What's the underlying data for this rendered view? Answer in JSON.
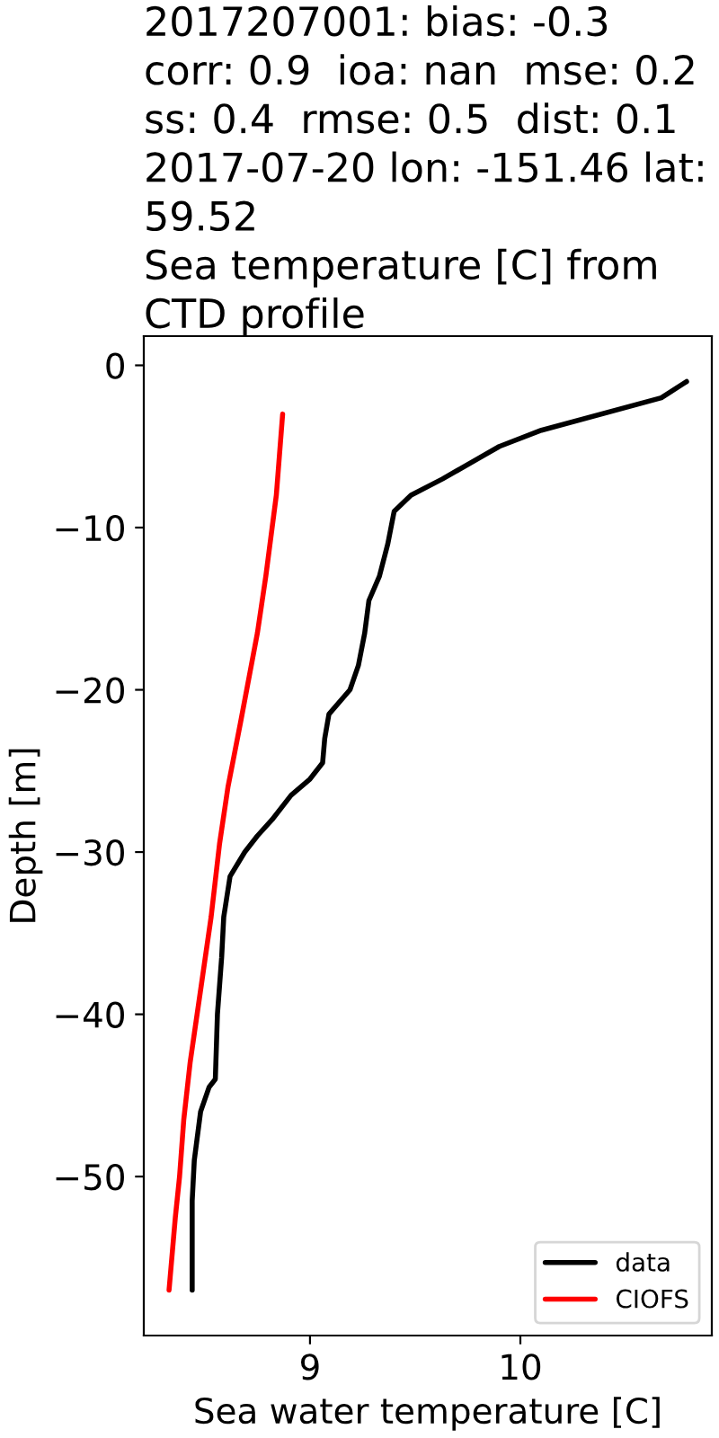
{
  "chart_data": {
    "type": "line",
    "title": "2017207001: bias: -0.3\ncorr: 0.9  ioa: nan  mse: 0.2\nss: 0.4  rmse: 0.5  dist: 0.1\n2017-07-20 lon: -151.46 lat: 59.52\nSea temperature [C] from CTD profile",
    "xlabel": "Sea water temperature [C]",
    "ylabel": "Depth [m]",
    "series": [
      {
        "name": "data",
        "color": "#000000",
        "x": [
          10.79,
          10.67,
          10.1,
          9.9,
          9.63,
          9.48,
          9.4,
          9.37,
          9.33,
          9.28,
          9.26,
          9.23,
          9.19,
          9.09,
          9.07,
          9.06,
          9.0,
          8.91,
          8.82,
          8.75,
          8.69,
          8.62,
          8.59,
          8.58,
          8.56,
          8.55,
          8.52,
          8.48,
          8.45,
          8.44,
          8.44
        ],
        "values": [
          -1,
          -2,
          -4,
          -5,
          -7,
          -8,
          -9,
          -11,
          -13,
          -14.5,
          -16.5,
          -18.5,
          -20,
          -21.5,
          -23,
          -24.5,
          -25.5,
          -26.5,
          -28,
          -29,
          -30,
          -31.5,
          -34,
          -36.5,
          -40,
          -44,
          -44.5,
          -46,
          -49,
          -51.5,
          -57
        ]
      },
      {
        "name": "CIOFS",
        "color": "#ff0000",
        "x": [
          8.87,
          8.84,
          8.79,
          8.75,
          8.67,
          8.61,
          8.57,
          8.53,
          8.48,
          8.43,
          8.4,
          8.38,
          8.36,
          8.35,
          8.33
        ],
        "values": [
          -3,
          -8,
          -13,
          -16.5,
          -22,
          -26,
          -29.5,
          -34,
          -38.5,
          -43,
          -46.5,
          -50,
          -52.5,
          -54,
          -57
        ]
      }
    ],
    "xlim": [
      8.21,
      10.91
    ],
    "ylim": [
      -59.8,
      1.8
    ],
    "xticks": [
      9,
      10
    ],
    "yticks": [
      {
        "value": -50,
        "label": "−50"
      },
      {
        "value": -40,
        "label": "−40"
      },
      {
        "value": -30,
        "label": "−30"
      },
      {
        "value": -20,
        "label": "−20"
      },
      {
        "value": -10,
        "label": "−10"
      },
      0
    ],
    "legend": "bottom right"
  }
}
